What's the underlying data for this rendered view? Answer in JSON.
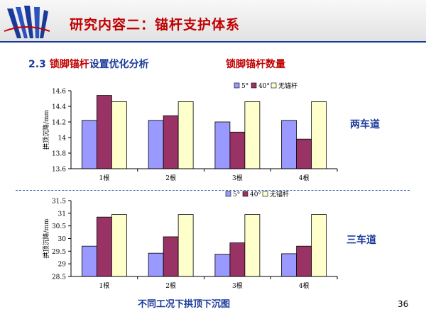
{
  "header": {
    "title": "研究内容二：锚杆支护体系"
  },
  "subtitle": {
    "number": "2.3",
    "part1": "锁脚锚杆",
    "part2": "设置优化分析"
  },
  "count_title": "锁脚锚杆数量",
  "labels": {
    "two_lane": "两车道",
    "three_lane": "三车道"
  },
  "caption": "不同工况下拱顶下沉图",
  "page_number": "36",
  "colors": {
    "s5": "#9999ff",
    "s40": "#993366",
    "none": "#ffffcc",
    "accent_red": "#c00000",
    "accent_blue": "#1a3a9a"
  },
  "chart_data": [
    {
      "type": "bar",
      "categories": [
        "1根",
        "2根",
        "3根",
        "4根"
      ],
      "series": [
        {
          "name": "5°",
          "values": [
            14.22,
            14.22,
            14.2,
            14.22
          ]
        },
        {
          "name": "40°",
          "values": [
            14.54,
            14.28,
            14.07,
            13.98
          ]
        },
        {
          "name": "无锚杆",
          "values": [
            14.46,
            14.46,
            14.46,
            14.46
          ]
        }
      ],
      "ylabel": "拱顶沉降/mm",
      "ylim": [
        13.6,
        14.6
      ],
      "yticks": [
        "13.6",
        "13.8",
        "14",
        "14.2",
        "14.4",
        "14.6"
      ],
      "legend": "top-right"
    },
    {
      "type": "bar",
      "categories": [
        "1根",
        "2根",
        "3根",
        "4根"
      ],
      "series": [
        {
          "name": "5°",
          "values": [
            29.7,
            29.42,
            29.38,
            29.4
          ]
        },
        {
          "name": "40°",
          "values": [
            30.85,
            30.07,
            29.83,
            29.7
          ]
        },
        {
          "name": "无锚杆",
          "values": [
            30.95,
            30.95,
            30.95,
            30.95
          ]
        }
      ],
      "ylabel": "拱顶沉降/mm",
      "ylim": [
        28.5,
        31.5
      ],
      "yticks": [
        "28.5",
        "29",
        "29.5",
        "30",
        "30.5",
        "31",
        "31.5"
      ],
      "legend": "top"
    }
  ]
}
